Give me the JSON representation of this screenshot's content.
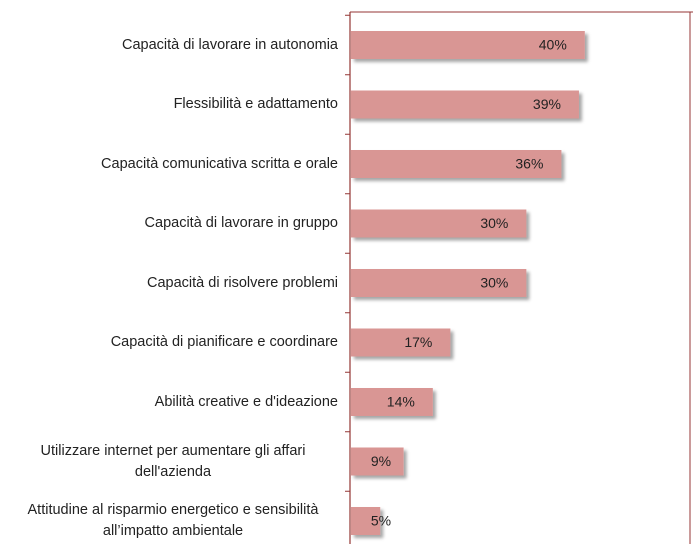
{
  "chart_data": {
    "type": "bar",
    "orientation": "horizontal",
    "categories": [
      "Capacità di lavorare in autonomia",
      "Flessibilità e adattamento",
      "Capacità comunicativa scritta e orale",
      "Capacità di lavorare in gruppo",
      "Capacità di risolvere problemi",
      "Capacità di pianificare e coordinare",
      "Abilità creative e d'ideazione",
      "Utilizzare internet per aumentare gli affari dell'azienda",
      "Attitudine al risparmio energetico e sensibilità all’impatto ambientale"
    ],
    "values": [
      40,
      39,
      36,
      30,
      30,
      17,
      14,
      9,
      5
    ],
    "value_labels": [
      "40%",
      "39%",
      "36%",
      "30%",
      "30%",
      "17%",
      "14%",
      "9%",
      "5%"
    ],
    "color": "#d99694",
    "xlim": [
      0,
      58
    ]
  }
}
